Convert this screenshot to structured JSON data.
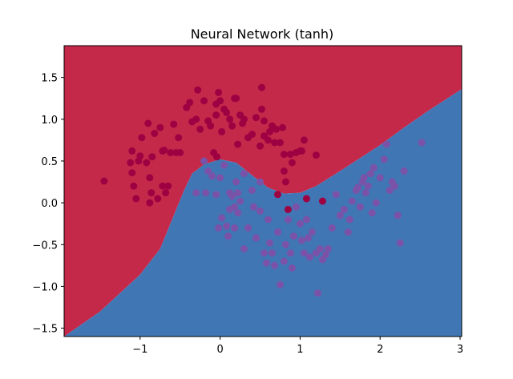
{
  "chart_data": {
    "type": "scatter",
    "title": "Neural Network (tanh)",
    "xlabel": "",
    "ylabel": "",
    "xlim": [
      -1.95,
      3.02
    ],
    "ylim": [
      -1.6,
      1.88
    ],
    "xticks": [
      -1,
      0,
      1,
      2,
      3
    ],
    "xtick_labels": [
      "−1",
      "0",
      "1",
      "2",
      "3"
    ],
    "yticks": [
      -1.5,
      -1.0,
      -0.5,
      0.0,
      0.5,
      1.0,
      1.5
    ],
    "ytick_labels": [
      "−1.5",
      "−1.0",
      "−0.5",
      "0.0",
      "0.5",
      "1.0",
      "1.5"
    ],
    "grid": false,
    "colors": {
      "region_class_0": "#c5294a",
      "region_class_1": "#4176b5",
      "points_class_0": "#9e0142",
      "points_class_1": "#7a52a8",
      "frame": "#000000"
    },
    "decision_boundary": [
      [
        -1.95,
        -1.6
      ],
      [
        -1.5,
        -1.3
      ],
      [
        -1.0,
        -0.86
      ],
      [
        -0.75,
        -0.55
      ],
      [
        -0.6,
        -0.2
      ],
      [
        -0.45,
        0.15
      ],
      [
        -0.35,
        0.35
      ],
      [
        -0.2,
        0.46
      ],
      [
        0.0,
        0.52
      ],
      [
        0.2,
        0.48
      ],
      [
        0.4,
        0.33
      ],
      [
        0.6,
        0.18
      ],
      [
        0.8,
        0.11
      ],
      [
        1.0,
        0.12
      ],
      [
        1.2,
        0.2
      ],
      [
        1.5,
        0.38
      ],
      [
        2.0,
        0.69
      ],
      [
        2.3,
        0.9
      ],
      [
        2.6,
        1.1
      ],
      [
        3.02,
        1.36
      ]
    ],
    "series": [
      {
        "class": 0,
        "points": [
          [
            -1.45,
            0.26
          ],
          [
            -1.12,
            0.48
          ],
          [
            -1.1,
            0.62
          ],
          [
            -1.1,
            0.36
          ],
          [
            -1.08,
            0.2
          ],
          [
            -1.05,
            0.05
          ],
          [
            -1.02,
            0.5
          ],
          [
            -1.0,
            0.56
          ],
          [
            -0.98,
            0.78
          ],
          [
            -0.92,
            0.48
          ],
          [
            -0.9,
            0.95
          ],
          [
            -0.88,
            0.3
          ],
          [
            -0.88,
            0.0
          ],
          [
            -0.86,
            0.12
          ],
          [
            -0.85,
            0.55
          ],
          [
            -0.82,
            0.83
          ],
          [
            -0.78,
            0.05
          ],
          [
            -0.75,
            0.9
          ],
          [
            -0.72,
            0.62
          ],
          [
            -0.72,
            0.2
          ],
          [
            -0.7,
            0.63
          ],
          [
            -0.68,
            0.12
          ],
          [
            -0.65,
            0.2
          ],
          [
            -0.62,
            0.6
          ],
          [
            -0.58,
            0.94
          ],
          [
            -0.55,
            0.6
          ],
          [
            -0.52,
            0.78
          ],
          [
            -0.5,
            0.6
          ],
          [
            -0.42,
            1.14
          ],
          [
            -0.38,
            1.2
          ],
          [
            -0.35,
            0.97
          ],
          [
            -0.3,
            1.0
          ],
          [
            -0.28,
            1.35
          ],
          [
            -0.25,
            0.88
          ],
          [
            -0.2,
            1.22
          ],
          [
            -0.15,
            0.98
          ],
          [
            -0.12,
            0.92
          ],
          [
            -0.08,
            0.6
          ],
          [
            -0.05,
            1.05
          ],
          [
            -0.05,
            1.18
          ],
          [
            -0.04,
            0.55
          ],
          [
            -0.02,
            1.32
          ],
          [
            0.0,
            1.22
          ],
          [
            0.02,
            0.85
          ],
          [
            0.05,
            1.12
          ],
          [
            0.08,
            1.08
          ],
          [
            0.12,
            1.0
          ],
          [
            0.15,
            0.92
          ],
          [
            0.18,
            1.25
          ],
          [
            0.2,
            1.25
          ],
          [
            0.22,
            0.7
          ],
          [
            0.25,
            1.05
          ],
          [
            0.28,
            0.95
          ],
          [
            0.3,
            1.0
          ],
          [
            0.35,
            0.78
          ],
          [
            0.4,
            0.82
          ],
          [
            0.45,
            1.02
          ],
          [
            0.5,
            0.68
          ],
          [
            0.52,
            1.12
          ],
          [
            0.52,
            1.38
          ],
          [
            0.55,
            0.98
          ],
          [
            0.55,
            0.8
          ],
          [
            0.6,
            0.75
          ],
          [
            0.62,
            0.85
          ],
          [
            0.65,
            0.92
          ],
          [
            0.68,
            0.72
          ],
          [
            0.7,
            0.88
          ],
          [
            0.72,
            0.1
          ],
          [
            0.75,
            0.72
          ],
          [
            0.78,
            0.9
          ],
          [
            0.8,
            0.58
          ],
          [
            0.8,
            0.38
          ],
          [
            0.82,
            0.25
          ],
          [
            0.85,
            -0.08
          ],
          [
            0.88,
            0.58
          ],
          [
            0.9,
            0.48
          ],
          [
            0.95,
            0.6
          ],
          [
            1.0,
            0.62
          ],
          [
            1.02,
            0.62
          ],
          [
            1.05,
            0.75
          ],
          [
            1.08,
            0.05
          ],
          [
            1.2,
            0.57
          ],
          [
            1.28,
            0.02
          ]
        ]
      },
      {
        "class": 1,
        "points": [
          [
            -0.3,
            0.12
          ],
          [
            -0.2,
            0.5
          ],
          [
            -0.18,
            0.12
          ],
          [
            -0.15,
            0.38
          ],
          [
            -0.1,
            0.32
          ],
          [
            -0.05,
            0.1
          ],
          [
            -0.02,
            -0.3
          ],
          [
            0.0,
            0.3
          ],
          [
            0.02,
            -0.18
          ],
          [
            0.05,
            0.45
          ],
          [
            0.08,
            -0.28
          ],
          [
            0.1,
            -0.4
          ],
          [
            0.12,
            -0.08
          ],
          [
            0.12,
            0.12
          ],
          [
            0.15,
            0.08
          ],
          [
            0.18,
            -0.3
          ],
          [
            0.18,
            -0.05
          ],
          [
            0.2,
            0.25
          ],
          [
            0.22,
            -0.12
          ],
          [
            0.22,
            0.12
          ],
          [
            0.25,
            0.02
          ],
          [
            0.3,
            0.35
          ],
          [
            0.3,
            -0.55
          ],
          [
            0.35,
            -0.3
          ],
          [
            0.4,
            0.15
          ],
          [
            0.42,
            -0.05
          ],
          [
            0.45,
            -0.42
          ],
          [
            0.5,
            0.25
          ],
          [
            0.5,
            -0.1
          ],
          [
            0.55,
            -0.6
          ],
          [
            0.58,
            -0.72
          ],
          [
            0.6,
            -0.2
          ],
          [
            0.62,
            -0.48
          ],
          [
            0.65,
            -0.6
          ],
          [
            0.68,
            -0.75
          ],
          [
            0.72,
            -0.35
          ],
          [
            0.75,
            -0.98
          ],
          [
            0.8,
            -0.7
          ],
          [
            0.82,
            -0.5
          ],
          [
            0.85,
            -0.2
          ],
          [
            0.88,
            -0.6
          ],
          [
            0.9,
            -0.78
          ],
          [
            0.92,
            -0.4
          ],
          [
            0.95,
            -0.05
          ],
          [
            1.0,
            -0.25
          ],
          [
            1.02,
            -0.45
          ],
          [
            1.05,
            -0.6
          ],
          [
            1.08,
            -0.2
          ],
          [
            1.1,
            -0.42
          ],
          [
            1.12,
            -0.65
          ],
          [
            1.15,
            -0.35
          ],
          [
            1.2,
            -0.6
          ],
          [
            1.22,
            -1.08
          ],
          [
            1.25,
            -0.55
          ],
          [
            1.28,
            -0.68
          ],
          [
            1.32,
            -0.62
          ],
          [
            1.35,
            -0.55
          ],
          [
            1.4,
            -0.3
          ],
          [
            1.45,
            0.1
          ],
          [
            1.5,
            -0.15
          ],
          [
            1.55,
            -0.08
          ],
          [
            1.6,
            -0.35
          ],
          [
            1.62,
            -0.2
          ],
          [
            1.65,
            0.02
          ],
          [
            1.7,
            0.15
          ],
          [
            1.72,
            0.18
          ],
          [
            1.75,
            -0.05
          ],
          [
            1.78,
            0.25
          ],
          [
            1.8,
            0.3
          ],
          [
            1.82,
            0.12
          ],
          [
            1.85,
            0.2
          ],
          [
            1.88,
            0.35
          ],
          [
            1.9,
            -0.12
          ],
          [
            1.92,
            0.42
          ],
          [
            1.95,
            0.0
          ],
          [
            2.0,
            0.3
          ],
          [
            2.05,
            0.52
          ],
          [
            2.08,
            0.7
          ],
          [
            2.12,
            0.15
          ],
          [
            2.15,
            0.25
          ],
          [
            2.18,
            0.2
          ],
          [
            2.22,
            -0.15
          ],
          [
            2.25,
            -0.48
          ],
          [
            2.3,
            0.38
          ],
          [
            2.52,
            0.72
          ]
        ]
      }
    ]
  }
}
